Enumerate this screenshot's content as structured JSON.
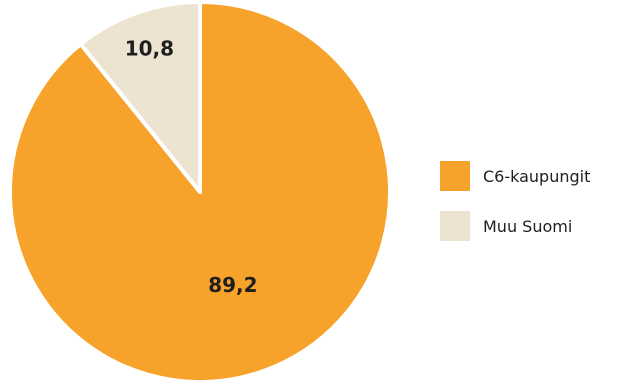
{
  "chart_data": {
    "type": "pie",
    "categories": [
      "C6-kaupungit",
      "Muu Suomi"
    ],
    "values": [
      89.2,
      10.8
    ],
    "data_labels": [
      "89,2",
      "10,8"
    ],
    "colors": [
      "#f7a22a",
      "#ede3d1"
    ],
    "start_angle_deg": 0,
    "direction": "clockwise",
    "legend_position": "right"
  }
}
